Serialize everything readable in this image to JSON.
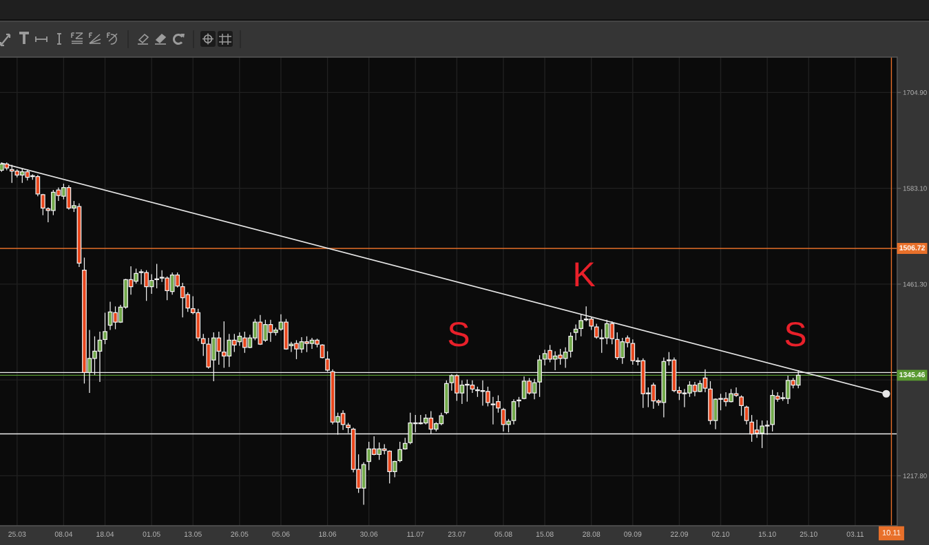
{
  "chart_data": {
    "type": "candlestick",
    "categories": [
      null,
      null,
      null,
      "25.03",
      null,
      null,
      null,
      null,
      null,
      null,
      null,
      null,
      "08.04",
      null,
      null,
      null,
      null,
      null,
      null,
      null,
      "18.04",
      null,
      null,
      null,
      null,
      null,
      null,
      null,
      null,
      "01.05",
      null,
      null,
      null,
      null,
      null,
      null,
      null,
      "13.05",
      null,
      null,
      null,
      null,
      null,
      null,
      null,
      null,
      "26.05",
      null,
      null,
      null,
      null,
      null,
      null,
      null,
      "05.06",
      null,
      null,
      null,
      null,
      null,
      null,
      null,
      null,
      "18.06",
      null,
      null,
      null,
      null,
      null,
      null,
      null,
      "30.06",
      null,
      null,
      null,
      null,
      null,
      null,
      null,
      null,
      "11.07",
      null,
      null,
      null,
      null,
      null,
      null,
      null,
      "23.07",
      null,
      null,
      null,
      null,
      null,
      null,
      null,
      null,
      "05.08",
      null,
      null,
      null,
      null,
      null,
      null,
      null,
      "15.08",
      null,
      null,
      null,
      null,
      null,
      null,
      null,
      null,
      "28.08",
      null,
      null,
      null,
      null,
      null,
      null,
      null,
      "09.09",
      null,
      null,
      null,
      null,
      null,
      null,
      null,
      null,
      "22.09",
      null,
      null,
      null,
      null,
      null,
      null,
      null,
      "02.10",
      null,
      null,
      null,
      null,
      null,
      null,
      null,
      null,
      "15.10",
      null,
      null,
      null,
      null,
      null,
      null,
      null,
      "25.10",
      null,
      null,
      null,
      null,
      null,
      null,
      null,
      null,
      "03.11",
      null,
      null,
      null,
      null,
      null,
      null,
      "10.11"
    ],
    "ohlc": [
      [
        1606,
        1616,
        1604,
        1614
      ],
      [
        1614,
        1616,
        1606,
        1609
      ],
      [
        1607,
        1613,
        1590,
        1605
      ],
      [
        1605,
        1607,
        1597,
        1600
      ],
      [
        1600,
        1608,
        1590,
        1604
      ],
      [
        1604,
        1607,
        1593,
        1597
      ],
      [
        1599,
        1601,
        1594,
        1598
      ],
      [
        1598,
        1600,
        1573,
        1576
      ],
      [
        1575,
        1576,
        1549,
        1558
      ],
      [
        1557,
        1559,
        1540,
        1555
      ],
      [
        1555,
        1581,
        1549,
        1578
      ],
      [
        1581,
        1584,
        1567,
        1574
      ],
      [
        1573,
        1589,
        1569,
        1584
      ],
      [
        1584,
        1587,
        1556,
        1558
      ],
      [
        1558,
        1567,
        1553,
        1561
      ],
      [
        1560,
        1564,
        1483,
        1488
      ],
      [
        1479,
        1495,
        1335,
        1349
      ],
      [
        1349,
        1403,
        1323,
        1367
      ],
      [
        1367,
        1395,
        1346,
        1376
      ],
      [
        1376,
        1401,
        1337,
        1390
      ],
      [
        1391,
        1425,
        1385,
        1401
      ],
      [
        1409,
        1439,
        1403,
        1426
      ],
      [
        1425,
        1433,
        1404,
        1413
      ],
      [
        1413,
        1435,
        1412,
        1432
      ],
      [
        1432,
        1468,
        1430,
        1467
      ],
      [
        1467,
        1484,
        1448,
        1458
      ],
      [
        1465,
        1481,
        1462,
        1475
      ],
      [
        1476,
        1480,
        1461,
        1477
      ],
      [
        1476,
        1479,
        1440,
        1458
      ],
      [
        1458,
        1474,
        1449,
        1466
      ],
      [
        1468,
        1487,
        1456,
        1467
      ],
      [
        1469,
        1479,
        1464,
        1470
      ],
      [
        1469,
        1471,
        1441,
        1453
      ],
      [
        1452,
        1476,
        1448,
        1473
      ],
      [
        1473,
        1476,
        1457,
        1459
      ],
      [
        1458,
        1463,
        1419,
        1444
      ],
      [
        1448,
        1451,
        1426,
        1431
      ],
      [
        1430,
        1446,
        1423,
        1425
      ],
      [
        1425,
        1430,
        1389,
        1393
      ],
      [
        1392,
        1398,
        1370,
        1386
      ],
      [
        1385,
        1393,
        1354,
        1356
      ],
      [
        1365,
        1400,
        1338,
        1393
      ],
      [
        1393,
        1401,
        1359,
        1376
      ],
      [
        1375,
        1414,
        1355,
        1370
      ],
      [
        1370,
        1398,
        1356,
        1390
      ],
      [
        1390,
        1398,
        1375,
        1384
      ],
      [
        1388,
        1400,
        1383,
        1395
      ],
      [
        1393,
        1401,
        1374,
        1381
      ],
      [
        1381,
        1397,
        1380,
        1393
      ],
      [
        1393,
        1417,
        1390,
        1413
      ],
      [
        1413,
        1422,
        1384,
        1385
      ],
      [
        1390,
        1416,
        1388,
        1410
      ],
      [
        1410,
        1416,
        1388,
        1400
      ],
      [
        1400,
        1406,
        1396,
        1403
      ],
      [
        1404,
        1423,
        1402,
        1413
      ],
      [
        1413,
        1417,
        1378,
        1379
      ],
      [
        1383,
        1388,
        1375,
        1385
      ],
      [
        1386,
        1390,
        1366,
        1379
      ],
      [
        1379,
        1394,
        1374,
        1388
      ],
      [
        1388,
        1395,
        1375,
        1386
      ],
      [
        1386,
        1393,
        1379,
        1390
      ],
      [
        1390,
        1392,
        1381,
        1385
      ],
      [
        1384,
        1385,
        1367,
        1368
      ],
      [
        1366,
        1376,
        1350,
        1352
      ],
      [
        1350,
        1353,
        1283,
        1286
      ],
      [
        1286,
        1298,
        1270,
        1293
      ],
      [
        1297,
        1301,
        1276,
        1283
      ],
      [
        1282,
        1285,
        1272,
        1279
      ],
      [
        1277,
        1279,
        1222,
        1226
      ],
      [
        1226,
        1245,
        1196,
        1202
      ],
      [
        1202,
        1235,
        1181,
        1232
      ],
      [
        1236,
        1261,
        1225,
        1252
      ],
      [
        1252,
        1268,
        1244,
        1245
      ],
      [
        1245,
        1260,
        1238,
        1252
      ],
      [
        1252,
        1258,
        1245,
        1250
      ],
      [
        1249,
        1250,
        1208,
        1223
      ],
      [
        1223,
        1237,
        1216,
        1236
      ],
      [
        1237,
        1261,
        1235,
        1251
      ],
      [
        1252,
        1266,
        1251,
        1259
      ],
      [
        1260,
        1298,
        1258,
        1285
      ],
      [
        1285,
        1295,
        1273,
        1284
      ],
      [
        1284,
        1295,
        1283,
        1285
      ],
      [
        1285,
        1296,
        1283,
        1291
      ],
      [
        1291,
        1300,
        1271,
        1277
      ],
      [
        1277,
        1286,
        1274,
        1284
      ],
      [
        1284,
        1298,
        1282,
        1294
      ],
      [
        1298,
        1339,
        1296,
        1335
      ],
      [
        1336,
        1347,
        1326,
        1345
      ],
      [
        1345,
        1347,
        1313,
        1323
      ],
      [
        1323,
        1339,
        1309,
        1333
      ],
      [
        1334,
        1340,
        1312,
        1333
      ],
      [
        1333,
        1339,
        1323,
        1328
      ],
      [
        1327,
        1331,
        1318,
        1326
      ],
      [
        1326,
        1339,
        1307,
        1325
      ],
      [
        1325,
        1331,
        1306,
        1311
      ],
      [
        1309,
        1318,
        1283,
        1308
      ],
      [
        1312,
        1320,
        1298,
        1304
      ],
      [
        1302,
        1304,
        1274,
        1283
      ],
      [
        1283,
        1290,
        1273,
        1287
      ],
      [
        1288,
        1315,
        1283,
        1312
      ],
      [
        1313,
        1318,
        1305,
        1314
      ],
      [
        1316,
        1344,
        1315,
        1338
      ],
      [
        1338,
        1342,
        1321,
        1323
      ],
      [
        1323,
        1341,
        1315,
        1336
      ],
      [
        1337,
        1371,
        1318,
        1365
      ],
      [
        1366,
        1378,
        1358,
        1373
      ],
      [
        1377,
        1384,
        1362,
        1366
      ],
      [
        1366,
        1376,
        1352,
        1370
      ],
      [
        1371,
        1379,
        1359,
        1367
      ],
      [
        1367,
        1381,
        1355,
        1375
      ],
      [
        1376,
        1400,
        1368,
        1395
      ],
      [
        1400,
        1410,
        1390,
        1404
      ],
      [
        1405,
        1423,
        1395,
        1415
      ],
      [
        1416,
        1433,
        1414,
        1417
      ],
      [
        1417,
        1420,
        1403,
        1408
      ],
      [
        1407,
        1411,
        1392,
        1394
      ],
      [
        1393,
        1404,
        1374,
        1392
      ],
      [
        1393,
        1416,
        1385,
        1411
      ],
      [
        1411,
        1414,
        1385,
        1392
      ],
      [
        1391,
        1400,
        1365,
        1368
      ],
      [
        1368,
        1393,
        1360,
        1388
      ],
      [
        1393,
        1396,
        1381,
        1387
      ],
      [
        1386,
        1391,
        1359,
        1364
      ],
      [
        1364,
        1368,
        1358,
        1363
      ],
      [
        1364,
        1367,
        1304,
        1322
      ],
      [
        1323,
        1330,
        1305,
        1322
      ],
      [
        1333,
        1336,
        1303,
        1313
      ],
      [
        1313,
        1315,
        1307,
        1311
      ],
      [
        1311,
        1368,
        1292,
        1363
      ],
      [
        1365,
        1375,
        1358,
        1364
      ],
      [
        1365,
        1368,
        1324,
        1326
      ],
      [
        1326,
        1331,
        1314,
        1323
      ],
      [
        1323,
        1328,
        1305,
        1322
      ],
      [
        1323,
        1338,
        1318,
        1333
      ],
      [
        1333,
        1337,
        1319,
        1325
      ],
      [
        1325,
        1339,
        1324,
        1335
      ],
      [
        1342,
        1353,
        1324,
        1329
      ],
      [
        1328,
        1338,
        1283,
        1288
      ],
      [
        1288,
        1316,
        1277,
        1315
      ],
      [
        1316,
        1322,
        1301,
        1315
      ],
      [
        1316,
        1324,
        1306,
        1312
      ],
      [
        1312,
        1328,
        1311,
        1322
      ],
      [
        1322,
        1330,
        1318,
        1320
      ],
      [
        1318,
        1320,
        1294,
        1307
      ],
      [
        1305,
        1307,
        1283,
        1288
      ],
      [
        1286,
        1295,
        1261,
        1271
      ],
      [
        1276,
        1289,
        1266,
        1272
      ],
      [
        1272,
        1288,
        1253,
        1281
      ],
      [
        1282,
        1288,
        1270,
        1281
      ],
      [
        1283,
        1327,
        1274,
        1320
      ],
      [
        1319,
        1324,
        1312,
        1315
      ],
      [
        1317,
        1324,
        1313,
        1316
      ],
      [
        1316,
        1345,
        1309,
        1339
      ],
      [
        1339,
        1342,
        1329,
        1333
      ],
      [
        1333,
        1352,
        1329,
        1345.5
      ],
      null,
      null,
      null,
      null,
      null,
      null,
      null,
      null,
      null,
      null,
      null,
      null,
      null,
      null,
      null,
      null,
      null,
      null
    ],
    "colors": [
      "#72a94a",
      "#e8461c",
      "#e8461c",
      "#e8461c",
      "#72a94a",
      "#e8461c",
      "#e8461c",
      "#e8461c",
      "#e8461c",
      "#e8461c",
      "#72a94a",
      "#e8461c",
      "#72a94a",
      "#e8461c",
      "#72a94a",
      "#e8461c",
      "#e8461c",
      "#72a94a",
      "#72a94a",
      "#72a94a",
      "#72a94a",
      "#72a94a",
      "#e8461c",
      "#72a94a",
      "#72a94a",
      "#e8461c",
      "#72a94a",
      "#72a94a",
      "#e8461c",
      "#72a94a",
      "#e8461c",
      "#72a94a",
      "#e8461c",
      "#72a94a",
      "#e8461c",
      "#e8461c",
      "#e8461c",
      "#e8461c",
      "#e8461c",
      "#e8461c",
      "#e8461c",
      "#72a94a",
      "#e8461c",
      "#e8461c",
      "#72a94a",
      "#e8461c",
      "#72a94a",
      "#e8461c",
      "#72a94a",
      "#72a94a",
      "#e8461c",
      "#72a94a",
      "#e8461c",
      "#72a94a",
      "#72a94a",
      "#e8461c",
      "#72a94a",
      "#e8461c",
      "#72a94a",
      "#e8461c",
      "#72a94a",
      "#e8461c",
      "#e8461c",
      "#e8461c",
      "#e8461c",
      "#72a94a",
      "#e8461c",
      "#e8461c",
      "#e8461c",
      "#e8461c",
      "#72a94a",
      "#72a94a",
      "#e8461c",
      "#72a94a",
      "#e8461c",
      "#e8461c",
      "#72a94a",
      "#72a94a",
      "#72a94a",
      "#72a94a",
      "#e8461c",
      "#72a94a",
      "#72a94a",
      "#e8461c",
      "#72a94a",
      "#72a94a",
      "#72a94a",
      "#72a94a",
      "#e8461c",
      "#72a94a",
      "#e8461c",
      "#e8461c",
      "#e8461c",
      "#e8461c",
      "#e8461c",
      "#e8461c",
      "#e8461c",
      "#e8461c",
      "#72a94a",
      "#72a94a",
      "#72a94a",
      "#72a94a",
      "#e8461c",
      "#72a94a",
      "#72a94a",
      "#72a94a",
      "#e8461c",
      "#72a94a",
      "#e8461c",
      "#72a94a",
      "#72a94a",
      "#72a94a",
      "#72a94a",
      "#72a94a",
      "#e8461c",
      "#e8461c",
      "#e8461c",
      "#72a94a",
      "#e8461c",
      "#e8461c",
      "#72a94a",
      "#e8461c",
      "#e8461c",
      "#e8461c",
      "#e8461c",
      "#e8461c",
      "#e8461c",
      "#e8461c",
      "#72a94a",
      "#e8461c",
      "#e8461c",
      "#e8461c",
      "#e8461c",
      "#72a94a",
      "#e8461c",
      "#72a94a",
      "#e8461c",
      "#e8461c",
      "#72a94a",
      "#e8461c",
      "#e8461c",
      "#72a94a",
      "#e8461c",
      "#e8461c",
      "#e8461c",
      "#e8461c",
      "#e8461c",
      "#72a94a",
      "#e8461c",
      "#72a94a",
      "#e8461c",
      "#e8461c",
      "#72a94a",
      "#e8461c",
      "#72a94a",
      null,
      null,
      null,
      null,
      null,
      null,
      null,
      null,
      null,
      null,
      null,
      null,
      null,
      null,
      null,
      null,
      null,
      null
    ],
    "series": [
      {
        "type": "line",
        "color": "#e6e6e6",
        "marker": "circle",
        "values": [
          1615,
          null,
          null,
          null,
          null,
          null,
          null,
          null,
          null,
          null,
          null,
          null,
          null,
          null,
          null,
          null,
          null,
          null,
          null,
          null,
          null,
          null,
          null,
          null,
          null,
          null,
          null,
          null,
          null,
          null,
          null,
          null,
          null,
          null,
          null,
          null,
          null,
          null,
          null,
          null,
          null,
          null,
          null,
          null,
          null,
          null,
          null,
          null,
          null,
          null,
          null,
          null,
          null,
          null,
          null,
          null,
          null,
          null,
          null,
          null,
          null,
          null,
          null,
          null,
          null,
          null,
          null,
          null,
          null,
          null,
          null,
          null,
          null,
          null,
          null,
          null,
          null,
          null,
          null,
          null,
          null,
          null,
          null,
          null,
          null,
          null,
          null,
          null,
          null,
          null,
          null,
          null,
          null,
          null,
          null,
          null,
          null,
          null,
          null,
          null,
          null,
          null,
          null,
          null,
          null,
          null,
          null,
          null,
          null,
          null,
          null,
          null,
          null,
          null,
          null,
          null,
          null,
          null,
          null,
          null,
          null,
          null,
          null,
          null,
          null,
          null,
          null,
          null,
          null,
          null,
          null,
          null,
          null,
          null,
          null,
          null,
          null,
          null,
          null,
          null,
          null,
          null,
          null,
          null,
          null,
          null,
          null,
          null,
          null,
          null,
          null,
          null,
          null,
          null,
          null,
          null,
          null,
          null,
          null,
          null,
          null,
          null,
          null,
          null,
          null,
          null,
          null,
          null,
          null,
          null,
          null,
          1322,
          null
        ]
      }
    ],
    "ylim": [
      1154.3,
      1749.8
    ],
    "yticks": [
      {
        "value": 1217.8,
        "label": "1217.80"
      },
      {
        "value": 1339.55,
        "label": null
      },
      {
        "value": 1461.3,
        "label": "1461.30"
      },
      {
        "value": 1583.1,
        "label": "1583.10"
      },
      {
        "value": 1704.9,
        "label": "1704.90"
      }
    ],
    "grid": true,
    "ref_lines": [
      {
        "axis": "y",
        "value": 1506.72,
        "label": "1506.72",
        "color": "#e8702a"
      },
      {
        "axis": "y",
        "value": 1349,
        "color": "#f0f0f0"
      },
      {
        "axis": "y",
        "value": 1345.46,
        "label": "1345.46",
        "color": "#5a9a32"
      },
      {
        "axis": "y",
        "value": 1271,
        "color": "#f0f0f0"
      },
      {
        "axis": "x",
        "value": "10.11",
        "label": "10.11",
        "color": "#e8702a"
      }
    ],
    "annotations": [
      "S",
      "K",
      "S"
    ]
  }
}
